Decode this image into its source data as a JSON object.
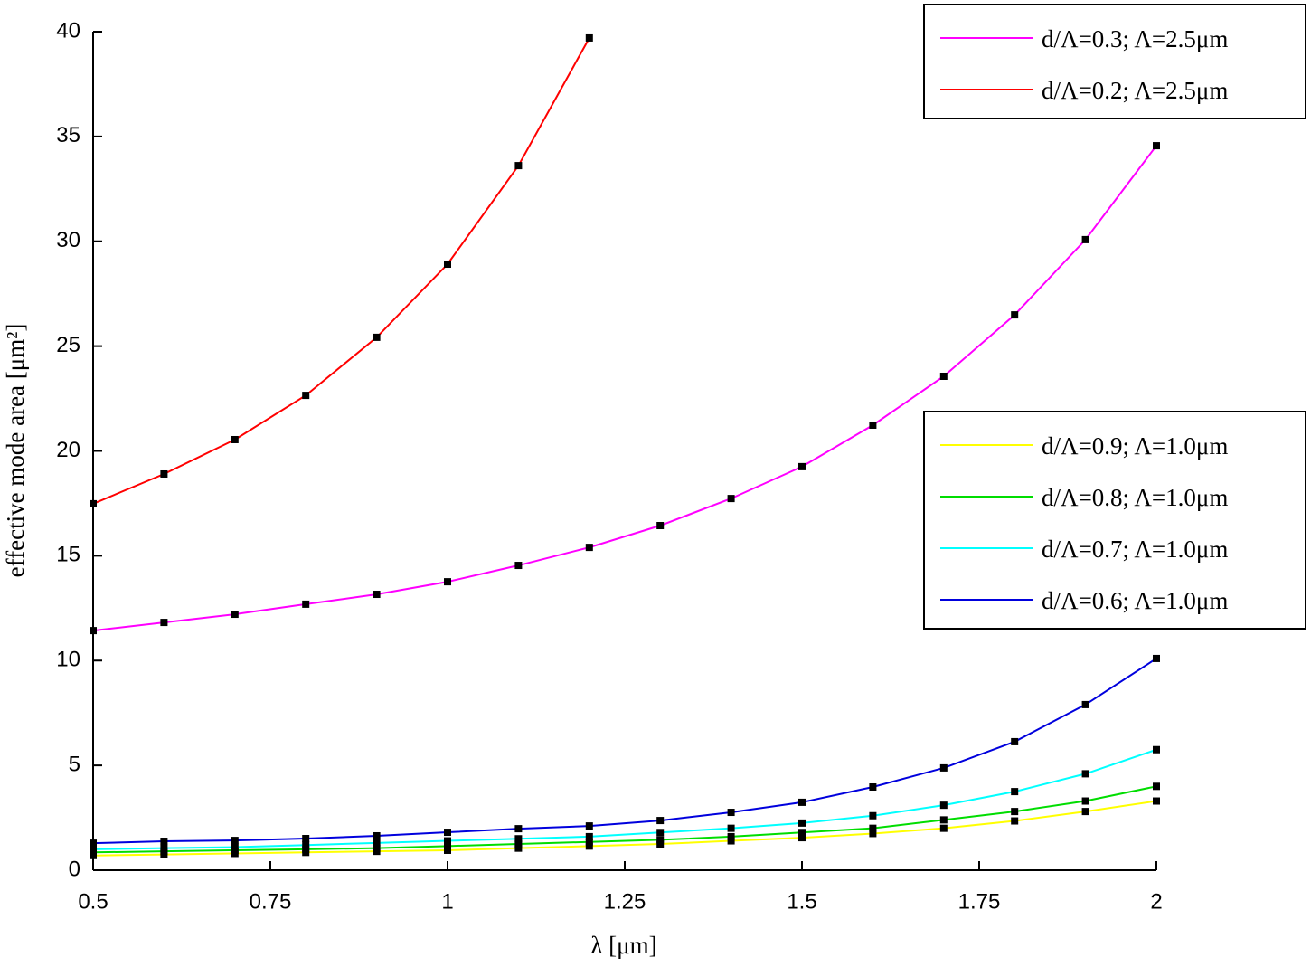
{
  "chart_data": {
    "type": "line",
    "xlabel": "λ [μm]",
    "ylabel": "effective mode area [μm²]",
    "x": [
      0.5,
      0.6,
      0.7,
      0.8,
      0.9,
      1.0,
      1.1,
      1.2,
      1.3,
      1.4,
      1.5,
      1.6,
      1.7,
      1.8,
      1.9,
      2.0
    ],
    "xlim": [
      0.5,
      2
    ],
    "ylim": [
      0,
      40
    ],
    "xticks": [
      0.5,
      0.75,
      1,
      1.25,
      1.5,
      1.75,
      2
    ],
    "yticks": [
      0,
      5,
      10,
      15,
      20,
      25,
      30,
      35,
      40
    ],
    "grid": false,
    "markers": true,
    "series": [
      {
        "name": "d/Λ=0.3; Λ=2.5μm",
        "color": "#ff00ff",
        "values": [
          11.43,
          11.82,
          12.21,
          12.69,
          13.16,
          13.76,
          14.54,
          15.4,
          16.44,
          17.73,
          19.25,
          21.23,
          23.56,
          26.49,
          30.08,
          34.56
        ]
      },
      {
        "name": "d/Λ=0.2; Λ=2.5μm",
        "color": "#ff0000",
        "values": [
          17.48,
          18.9,
          20.54,
          22.65,
          25.42,
          28.91,
          33.61,
          39.7,
          null,
          null,
          null,
          null,
          null,
          null,
          null,
          null
        ]
      },
      {
        "name": "d/Λ=0.9; Λ=1.0μm",
        "color": "#ffff00",
        "values": [
          0.7,
          0.75,
          0.8,
          0.85,
          0.9,
          0.95,
          1.05,
          1.15,
          1.25,
          1.4,
          1.55,
          1.75,
          2.0,
          2.35,
          2.8,
          3.3
        ]
      },
      {
        "name": "d/Λ=0.8; Λ=1.0μm",
        "color": "#00dd00",
        "values": [
          0.85,
          0.9,
          0.95,
          1.0,
          1.05,
          1.15,
          1.25,
          1.35,
          1.45,
          1.6,
          1.8,
          2.0,
          2.4,
          2.8,
          3.3,
          4.0
        ]
      },
      {
        "name": "d/Λ=0.7; Λ=1.0μm",
        "color": "#00ffff",
        "values": [
          1.0,
          1.05,
          1.1,
          1.2,
          1.3,
          1.4,
          1.5,
          1.6,
          1.8,
          2.0,
          2.25,
          2.6,
          3.1,
          3.75,
          4.6,
          5.75
        ]
      },
      {
        "name": "d/Λ=0.6; Λ=1.0μm",
        "color": "#0000dd",
        "values": [
          1.29,
          1.38,
          1.42,
          1.51,
          1.64,
          1.81,
          1.98,
          2.11,
          2.37,
          2.76,
          3.24,
          3.97,
          4.88,
          6.13,
          7.9,
          10.1
        ]
      }
    ],
    "legends": [
      {
        "location": "upper right",
        "series": [
          0,
          1
        ]
      },
      {
        "location": "center right",
        "series": [
          2,
          3,
          4,
          5
        ]
      }
    ]
  }
}
